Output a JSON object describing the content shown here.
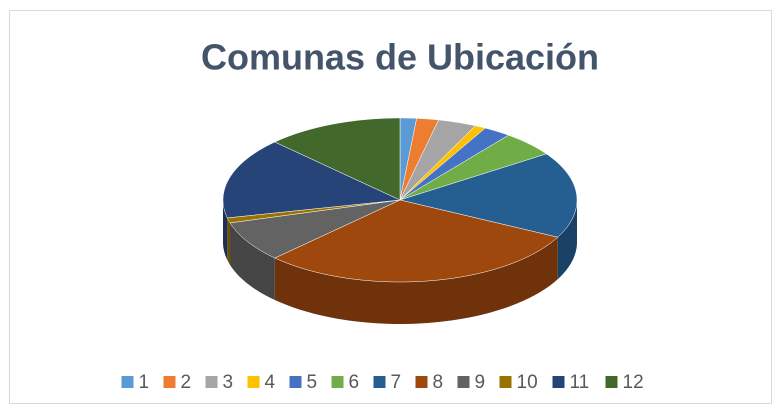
{
  "chart_data": {
    "type": "pie3d",
    "title": "Comunas de Ubicación",
    "categories": [
      "1",
      "2",
      "3",
      "4",
      "5",
      "6",
      "7",
      "8",
      "9",
      "10",
      "11",
      "12"
    ],
    "values": [
      1.5,
      2,
      3.5,
      1,
      2.5,
      5,
      17,
      30,
      8,
      1,
      16,
      12.5
    ],
    "colors": [
      "#5b9bd5",
      "#ed7d31",
      "#a5a5a5",
      "#ffc000",
      "#4472c4",
      "#70ad47",
      "#255e91",
      "#9e480e",
      "#636363",
      "#997300",
      "#264478",
      "#43682b"
    ],
    "legend": "bottom"
  }
}
